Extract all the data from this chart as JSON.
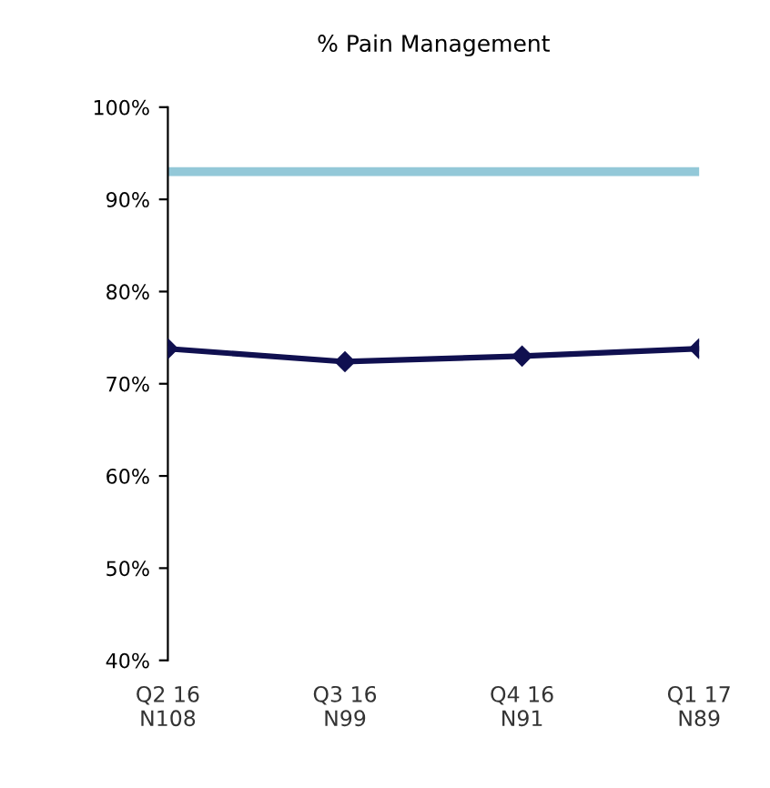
{
  "chart_data": {
    "type": "line",
    "title": "% Pain Management",
    "categories": [
      "Q2 16\nN108",
      "Q3 16\nN99",
      "Q4 16\nN91",
      "Q1 17\nN89"
    ],
    "series": [
      {
        "color": "#101050",
        "values": [
          73.8,
          72.4,
          73.0,
          73.8
        ]
      }
    ],
    "ylim": [
      40,
      100
    ],
    "yticks": [
      {
        "value": 40,
        "label": "40%"
      },
      {
        "value": 50,
        "label": "50%"
      },
      {
        "value": 60,
        "label": "60%"
      },
      {
        "value": 70,
        "label": "70%"
      },
      {
        "value": 80,
        "label": "80%"
      },
      {
        "value": 90,
        "label": "90%"
      },
      {
        "value": 100,
        "label": "100%"
      }
    ],
    "ref_lines": [
      {
        "axis": "y",
        "value": 93,
        "label": null,
        "color": "#93c8d8"
      }
    ],
    "marker": "diamond",
    "line_style": "solid",
    "grid": false,
    "legend": false
  }
}
